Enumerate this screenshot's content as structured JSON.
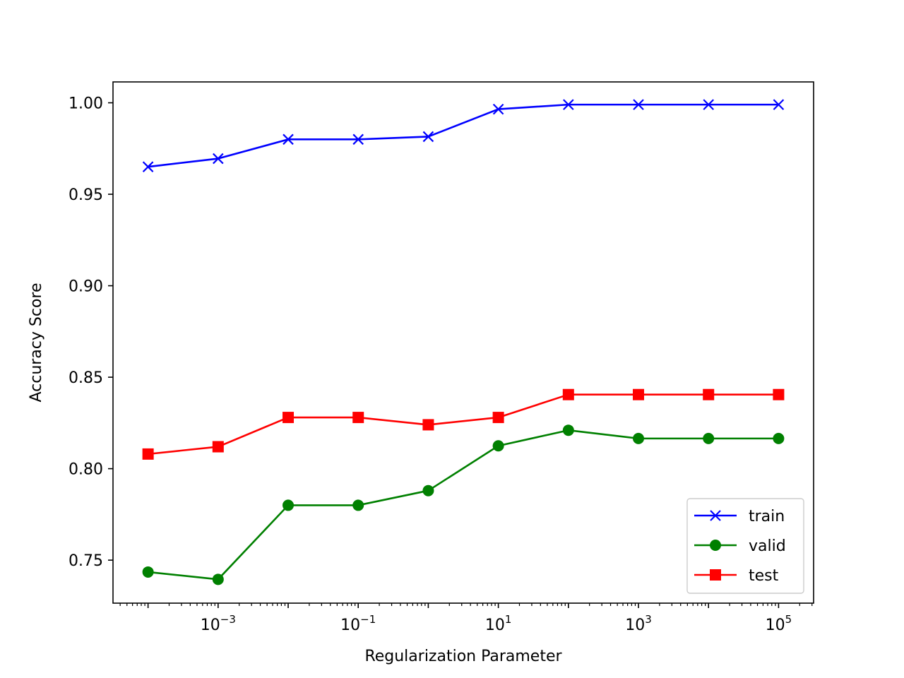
{
  "chart_data": {
    "type": "line",
    "xscale": "log",
    "xlabel": "Regularization Parameter",
    "ylabel": "Accuracy Score",
    "x": [
      0.0001,
      0.001,
      0.01,
      0.1,
      1,
      10,
      100,
      1000,
      10000,
      100000
    ],
    "xlim": [
      3.16e-05,
      316228
    ],
    "ylim": [
      0.7265,
      1.0114
    ],
    "xticks": [
      {
        "value": 0.001,
        "base": "10",
        "exp": "−3"
      },
      {
        "value": 0.1,
        "base": "10",
        "exp": "−1"
      },
      {
        "value": 10,
        "base": "10",
        "exp": "1"
      },
      {
        "value": 1000,
        "base": "10",
        "exp": "3"
      },
      {
        "value": 100000,
        "base": "10",
        "exp": "5"
      }
    ],
    "yticks": [
      {
        "value": 0.75,
        "label": "0.75"
      },
      {
        "value": 0.8,
        "label": "0.80"
      },
      {
        "value": 0.85,
        "label": "0.85"
      },
      {
        "value": 0.9,
        "label": "0.90"
      },
      {
        "value": 0.95,
        "label": "0.95"
      },
      {
        "value": 1.0,
        "label": "1.00"
      }
    ],
    "series": [
      {
        "name": "train",
        "color": "#0000ff",
        "marker": "x",
        "values": [
          0.965,
          0.9695,
          0.98,
          0.98,
          0.9815,
          0.9965,
          0.999,
          0.999,
          0.999,
          0.999
        ]
      },
      {
        "name": "valid",
        "color": "#008000",
        "marker": "circle",
        "values": [
          0.7435,
          0.7395,
          0.78,
          0.78,
          0.788,
          0.8125,
          0.821,
          0.8165,
          0.8165,
          0.8165
        ]
      },
      {
        "name": "test",
        "color": "#ff0000",
        "marker": "square",
        "values": [
          0.808,
          0.812,
          0.828,
          0.828,
          0.824,
          0.828,
          0.8405,
          0.8405,
          0.8405,
          0.8405
        ]
      }
    ],
    "legend": "lower-right",
    "grid": false
  }
}
